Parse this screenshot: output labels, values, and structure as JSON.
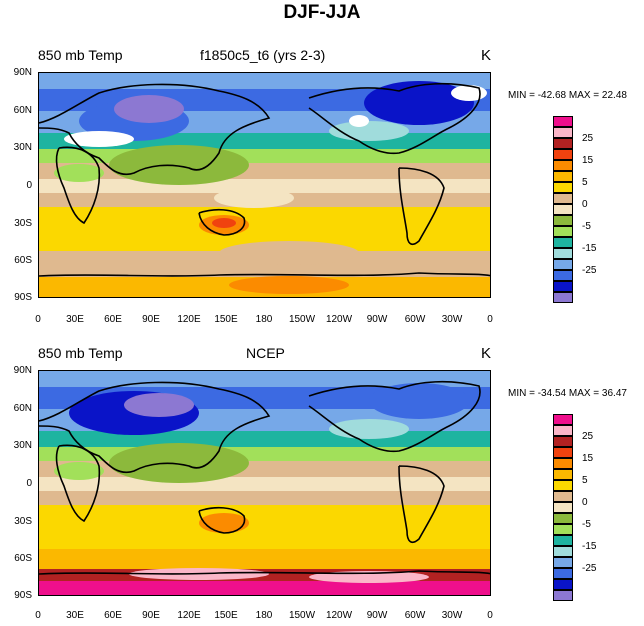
{
  "title": "DJF-JJA",
  "panels": [
    {
      "left_label": "850 mb Temp",
      "center_label": "f1850c5_t6 (yrs 2-3)",
      "unit": "K",
      "minmax": "MIN = -42.68 MAX =  22.48"
    },
    {
      "left_label": "850 mb Temp",
      "center_label": "NCEP",
      "unit": "K",
      "minmax": "MIN = -34.54 MAX =  36.47"
    }
  ],
  "lat_ticks": [
    "90N",
    "60N",
    "30N",
    "0",
    "30S",
    "60S",
    "90S"
  ],
  "lon_ticks": [
    "0",
    "30E",
    "60E",
    "90E",
    "120E",
    "150E",
    "180",
    "150W",
    "120W",
    "90W",
    "60W",
    "30W",
    "0"
  ],
  "colorbar": {
    "colors": [
      "#ef0f8c",
      "#fbb6c8",
      "#b22222",
      "#f0420f",
      "#fb8b00",
      "#fbb800",
      "#fbd800",
      "#dfb98f",
      "#f4e4c2",
      "#8cb93c",
      "#a2e05a",
      "#1eb4a0",
      "#a0dcdc",
      "#76a8e8",
      "#3c6ae2",
      "#0a14c8",
      "#8c78d2"
    ],
    "labels": [
      "25",
      "15",
      "5",
      "0",
      "-5",
      "-15",
      "-25"
    ]
  },
  "legend_colors": {
    "sea_ice": "#ffffff",
    "coast": "#000000"
  }
}
